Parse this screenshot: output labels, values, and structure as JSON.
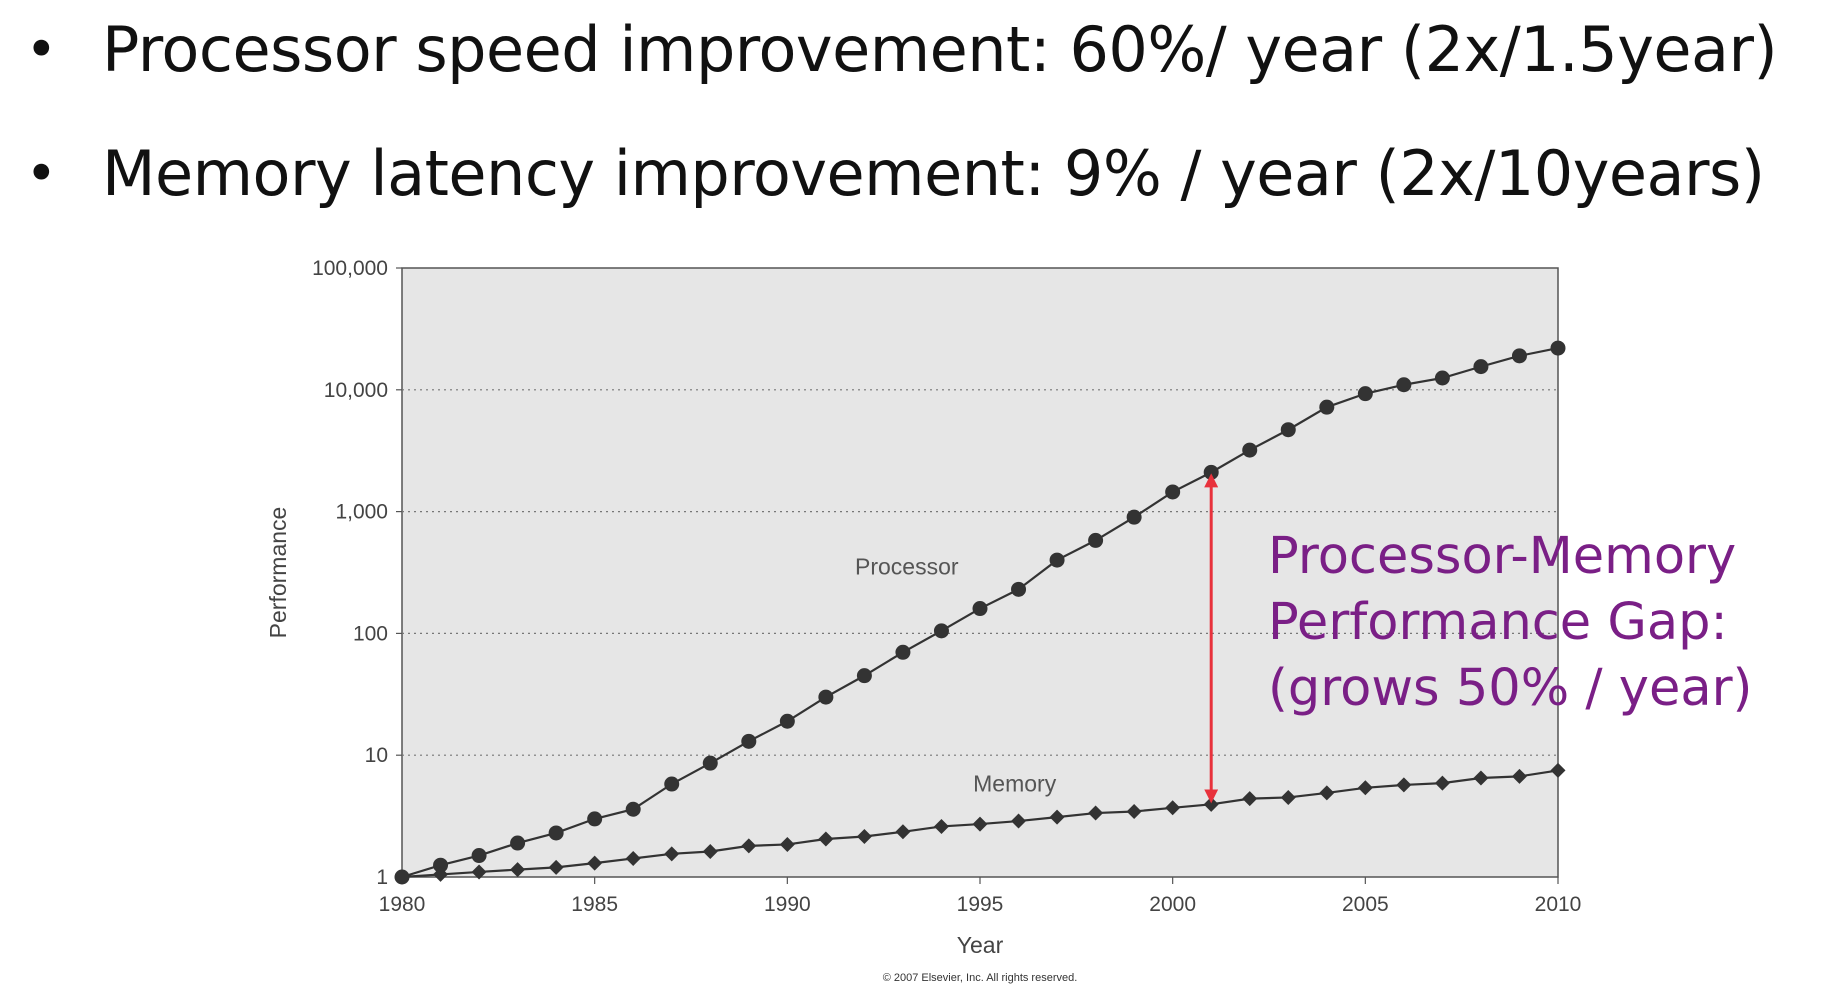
{
  "bullets": [
    {
      "marker": "•",
      "text": "Processor speed improvement: 60%/ year (2x/1.5year)"
    },
    {
      "marker": "•",
      "text": "Memory latency improvement: 9% / year (2x/10years)"
    }
  ],
  "colors": {
    "plot_bg": "#e6e6e6",
    "series": "#333333",
    "arrow": "#e8323c",
    "gap_text": "#7a1f86"
  },
  "chart_data": {
    "type": "line",
    "xlabel": "Year",
    "ylabel": "Performance",
    "xlim": [
      1980,
      2010
    ],
    "ylim": [
      1,
      100000
    ],
    "y_scale": "log",
    "grid": "horizontal dotted",
    "x_ticks": [
      "1980",
      "1985",
      "1990",
      "1995",
      "2000",
      "2005",
      "2010"
    ],
    "y_ticks": [
      "1",
      "10",
      "100",
      "1,000",
      "10,000",
      "100,000"
    ],
    "x": [
      1980,
      1981,
      1982,
      1983,
      1984,
      1985,
      1986,
      1987,
      1988,
      1989,
      1990,
      1991,
      1992,
      1993,
      1994,
      1995,
      1996,
      1997,
      1998,
      1999,
      2000,
      2001,
      2002,
      2003,
      2004,
      2005,
      2006,
      2007,
      2008,
      2009,
      2010
    ],
    "series": [
      {
        "name": "Processor",
        "marker": "circle",
        "values": [
          1,
          1.25,
          1.5,
          1.9,
          2.3,
          3.0,
          3.6,
          5.8,
          8.6,
          13,
          19,
          30,
          45,
          70,
          105,
          160,
          230,
          400,
          580,
          900,
          1450,
          2100,
          3200,
          4700,
          7200,
          9300,
          11000,
          12500,
          15500,
          19000,
          22000
        ]
      },
      {
        "name": "Memory",
        "marker": "diamond",
        "values": [
          1,
          1.05,
          1.1,
          1.15,
          1.2,
          1.3,
          1.42,
          1.55,
          1.62,
          1.8,
          1.85,
          2.05,
          2.15,
          2.35,
          2.6,
          2.72,
          2.88,
          3.1,
          3.35,
          3.45,
          3.7,
          3.95,
          4.4,
          4.5,
          4.9,
          5.4,
          5.7,
          5.9,
          6.5,
          6.7,
          7.5
        ]
      }
    ],
    "annotation": {
      "text_lines": [
        "Processor-Memory",
        "Performance Gap:",
        "(grows 50% / year)"
      ],
      "arrow_year": 2001,
      "arrow_from": 3.95,
      "arrow_to": 2100
    },
    "copyright": "© 2007 Elsevier, Inc. All rights reserved."
  }
}
